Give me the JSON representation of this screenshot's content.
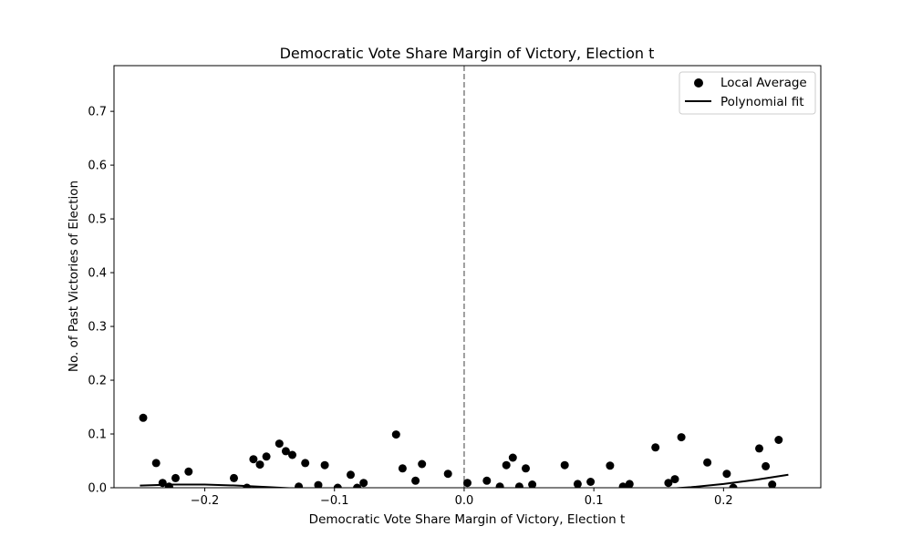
{
  "chart_data": {
    "type": "scatter",
    "title": "Democratic Vote Share Margin of Victory, Election t",
    "xlabel": "Democratic Vote Share Margin of Victory, Election t",
    "ylabel": "No. of Past Victories of Election",
    "xlim": [
      -0.27,
      0.275
    ],
    "ylim": [
      0,
      0.785
    ],
    "xticks": [
      -0.2,
      -0.1,
      0.0,
      0.1,
      0.2
    ],
    "xtick_labels": [
      "−0.2",
      "−0.1",
      "0.0",
      "0.1",
      "0.2"
    ],
    "yticks": [
      0,
      0.1,
      0.2,
      0.3,
      0.4,
      0.5,
      0.6,
      0.7
    ],
    "ytick_labels": [
      "0.0",
      "0.1",
      "0.2",
      "0.3",
      "0.4",
      "0.5",
      "0.6",
      "0.7"
    ],
    "cutoff_line_x": 0,
    "grid": false,
    "legend_position": "top-right",
    "series": [
      {
        "name": "Local Average",
        "kind": "scatter",
        "color": "#000000",
        "x": [
          -0.2475,
          -0.2375,
          -0.2325,
          -0.2275,
          -0.2225,
          -0.2125,
          -0.1775,
          -0.1675,
          -0.1625,
          -0.1575,
          -0.1525,
          -0.1425,
          -0.1375,
          -0.1325,
          -0.1275,
          -0.1225,
          -0.1125,
          -0.1075,
          -0.0975,
          -0.0875,
          -0.0825,
          -0.0775,
          -0.0525,
          -0.0475,
          -0.0375,
          -0.0325,
          -0.0125,
          0.0025,
          0.0175,
          0.0275,
          0.0325,
          0.0375,
          0.0425,
          0.0475,
          0.0525,
          0.0775,
          0.0875,
          0.0975,
          0.1125,
          0.1225,
          0.1275,
          0.1475,
          0.1575,
          0.1625,
          0.1675,
          0.1875,
          0.2025,
          0.2075,
          0.2275,
          0.2325,
          0.2375,
          0.2425
        ],
        "y": [
          0.13,
          0.046,
          0.009,
          0.002,
          0.018,
          0.03,
          0.018,
          0.0,
          0.053,
          0.043,
          0.058,
          0.082,
          0.068,
          0.061,
          0.002,
          0.046,
          0.005,
          0.042,
          0.0,
          0.024,
          0.0,
          0.009,
          0.099,
          0.036,
          0.013,
          0.044,
          0.026,
          0.009,
          0.013,
          0.002,
          0.042,
          0.056,
          0.002,
          0.036,
          0.006,
          0.042,
          0.007,
          0.011,
          0.041,
          0.002,
          0.007,
          0.075,
          0.009,
          0.016,
          0.094,
          0.047,
          0.026,
          0.0,
          0.073,
          0.04,
          0.006,
          0.089
        ]
      },
      {
        "name": "Polynomial fit",
        "kind": "line",
        "color": "#000000",
        "x": [
          -0.25,
          -0.225,
          -0.2,
          -0.175,
          -0.15,
          -0.125,
          -0.1,
          -0.075,
          -0.05,
          -0.025,
          0.0,
          0.025,
          0.05,
          0.075,
          0.1,
          0.125,
          0.15,
          0.175,
          0.2,
          0.225,
          0.25
        ],
        "y": [
          0.004,
          0.006,
          0.006,
          0.004,
          0.001,
          -0.002,
          -0.005,
          -0.008,
          -0.011,
          -0.013,
          -0.014,
          -0.014,
          -0.013,
          -0.011,
          -0.009,
          -0.006,
          -0.003,
          0.001,
          0.007,
          0.015,
          0.024
        ]
      }
    ]
  }
}
